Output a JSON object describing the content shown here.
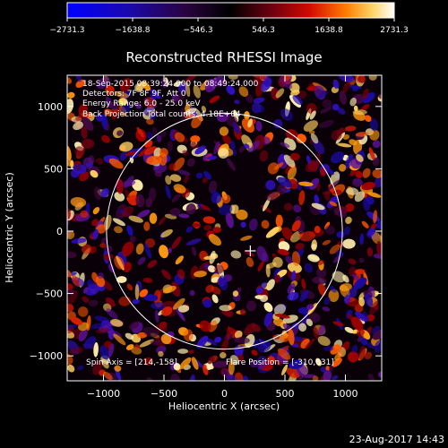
{
  "chart_data": {
    "type": "heatmap",
    "title": "Reconstructed RHESSI Image",
    "xlabel": "Heliocentric X (arcsec)",
    "ylabel": "Heliocentric Y (arcsec)",
    "xlim": [
      -1300,
      1300
    ],
    "ylim": [
      -1200,
      1250
    ],
    "x_ticks": [
      -1000,
      -500,
      0,
      500,
      1000
    ],
    "y_ticks": [
      -1000,
      -500,
      0,
      500,
      1000
    ],
    "x_tick_labels": [
      "−1000",
      "−500",
      "0",
      "500",
      "1000"
    ],
    "y_tick_labels": [
      "−1000",
      "−500",
      "0",
      "500",
      "1000"
    ],
    "colorbar": {
      "range": [
        -2731.3,
        2731.3
      ],
      "tick_values": [
        -2731.3,
        -1638.8,
        -546.3,
        546.3,
        1638.8,
        2731.3
      ],
      "tick_labels": [
        "−2731.3",
        "−1638.8",
        "−546.3",
        "546.3",
        "1638.8",
        "2731.3"
      ]
    },
    "annotations": [
      "18-Sep-2015 08:39:24.000 to 08:49:24.000",
      "Detectors: 7F 8F 9F, Att 0",
      "Energy Range: 6.0 - 25.0 keV",
      "Back Projection    Total counts: 4.18E+04"
    ],
    "footer_left": "Spin Axis = [214,-158]",
    "footer_right": "Flare Position = [-310,631]",
    "solar_limb": {
      "center": [
        0,
        0
      ],
      "radius": 960
    },
    "spin_axis_marker": [
      214,
      -158
    ],
    "grid": false
  },
  "timestamp": "23-Aug-2017 14:43",
  "colors": {
    "background": "#000000",
    "foreground": "#ffffff",
    "map_low": "#0000ff",
    "map_mid": "#000000",
    "map_high": "#ffffff"
  }
}
